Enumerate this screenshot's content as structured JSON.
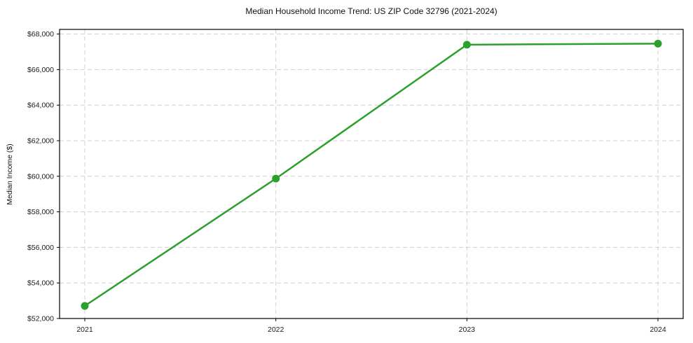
{
  "chart_data": {
    "type": "line",
    "title": "Median Household Income Trend: US ZIP Code 32796 (2021-2024)",
    "xlabel": "",
    "ylabel": "Median Income ($)",
    "categories": [
      "2021",
      "2022",
      "2023",
      "2024"
    ],
    "values": [
      52710,
      59870,
      67400,
      67460
    ],
    "yticks": [
      52000,
      54000,
      56000,
      58000,
      60000,
      62000,
      64000,
      66000,
      68000
    ],
    "ytick_labels": [
      "$52,000",
      "$54,000",
      "$56,000",
      "$58,000",
      "$60,000",
      "$62,000",
      "$64,000",
      "$66,000",
      "$68,000"
    ],
    "ylim": [
      52000,
      68260
    ],
    "grid": true,
    "legend_position": "none",
    "line_color": "#2ca02c",
    "marker_color": "#2ca02c",
    "grid_color": "#d0d0d0",
    "axis_color": "#000000",
    "tick_label_color": "#1a1a1a"
  }
}
